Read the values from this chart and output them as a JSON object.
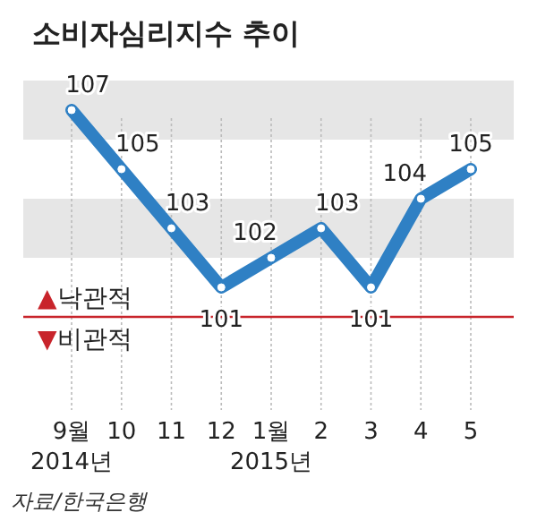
{
  "chart_data": {
    "type": "line",
    "title": "소비자심리지수 추이",
    "categories": [
      "9월\n2014년",
      "10",
      "11",
      "12",
      "1월\n2015년",
      "2",
      "3",
      "4",
      "5"
    ],
    "series": [
      {
        "color": "#2f80c4",
        "values": [
          107,
          105,
          103,
          101,
          102,
          103,
          101,
          104,
          105
        ]
      }
    ],
    "data_labels": true,
    "marker": "circle",
    "line_style": "solid",
    "grid": "x",
    "bands": [
      {
        "axis": "y",
        "from": 106,
        "to": 108,
        "color": "#e6e6e6"
      },
      {
        "axis": "y",
        "from": 102,
        "to": 104,
        "color": "#e6e6e6"
      }
    ],
    "ref_lines": [
      {
        "axis": "y",
        "value": 100,
        "label": "▲낙관적\n▼비관적",
        "color": "#c8242b"
      }
    ],
    "annotations": [
      "자료/한국은행"
    ]
  }
}
